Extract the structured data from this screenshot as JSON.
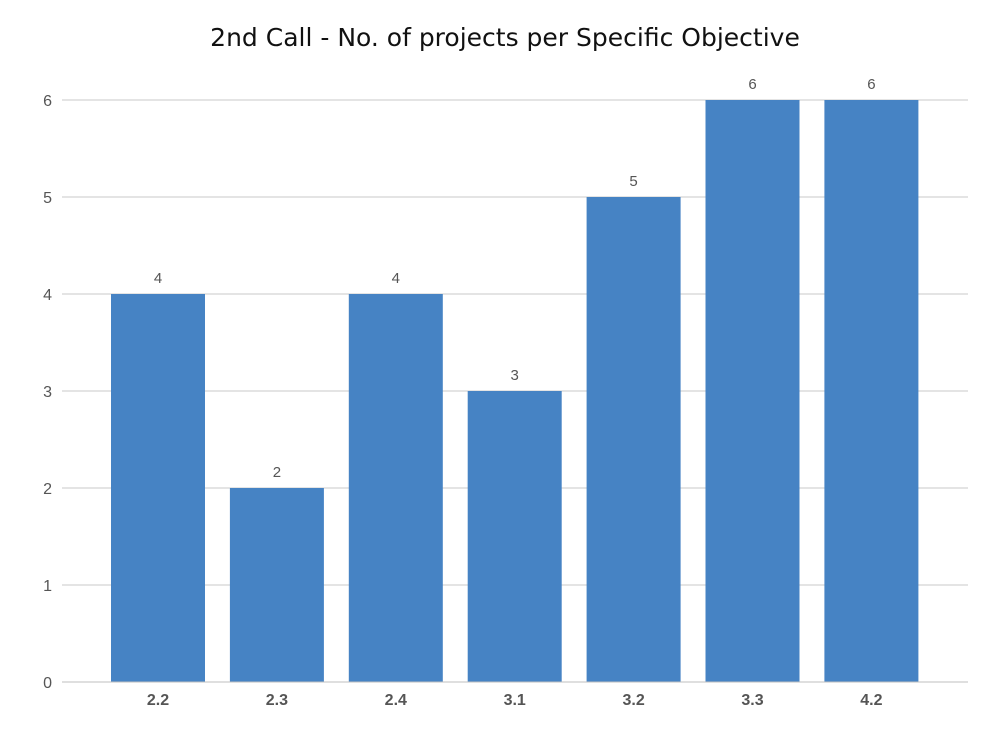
{
  "chart_data": {
    "type": "bar",
    "title": "2nd Call - No. of projects per Specific Objective",
    "xlabel": "",
    "ylabel": "",
    "categories": [
      "2.2",
      "2.3",
      "2.4",
      "3.1",
      "3.2",
      "3.3",
      "4.2"
    ],
    "series": [
      {
        "values": [
          4,
          2,
          4,
          3,
          5,
          6,
          6
        ],
        "color": "#4683C4"
      }
    ],
    "data_labels": [
      "4",
      "2",
      "4",
      "3",
      "5",
      "6",
      "6"
    ],
    "y_ticks": [
      "0",
      "1",
      "2",
      "3",
      "4",
      "5",
      "6"
    ],
    "ylim": [
      0,
      6
    ],
    "grid": true,
    "legend": "none",
    "colors": {
      "bar": "#4683C4",
      "grid": "#C8C8C8",
      "axis": "#BFBFBF",
      "tick_text": "#555555",
      "title_text": "#111111"
    }
  }
}
